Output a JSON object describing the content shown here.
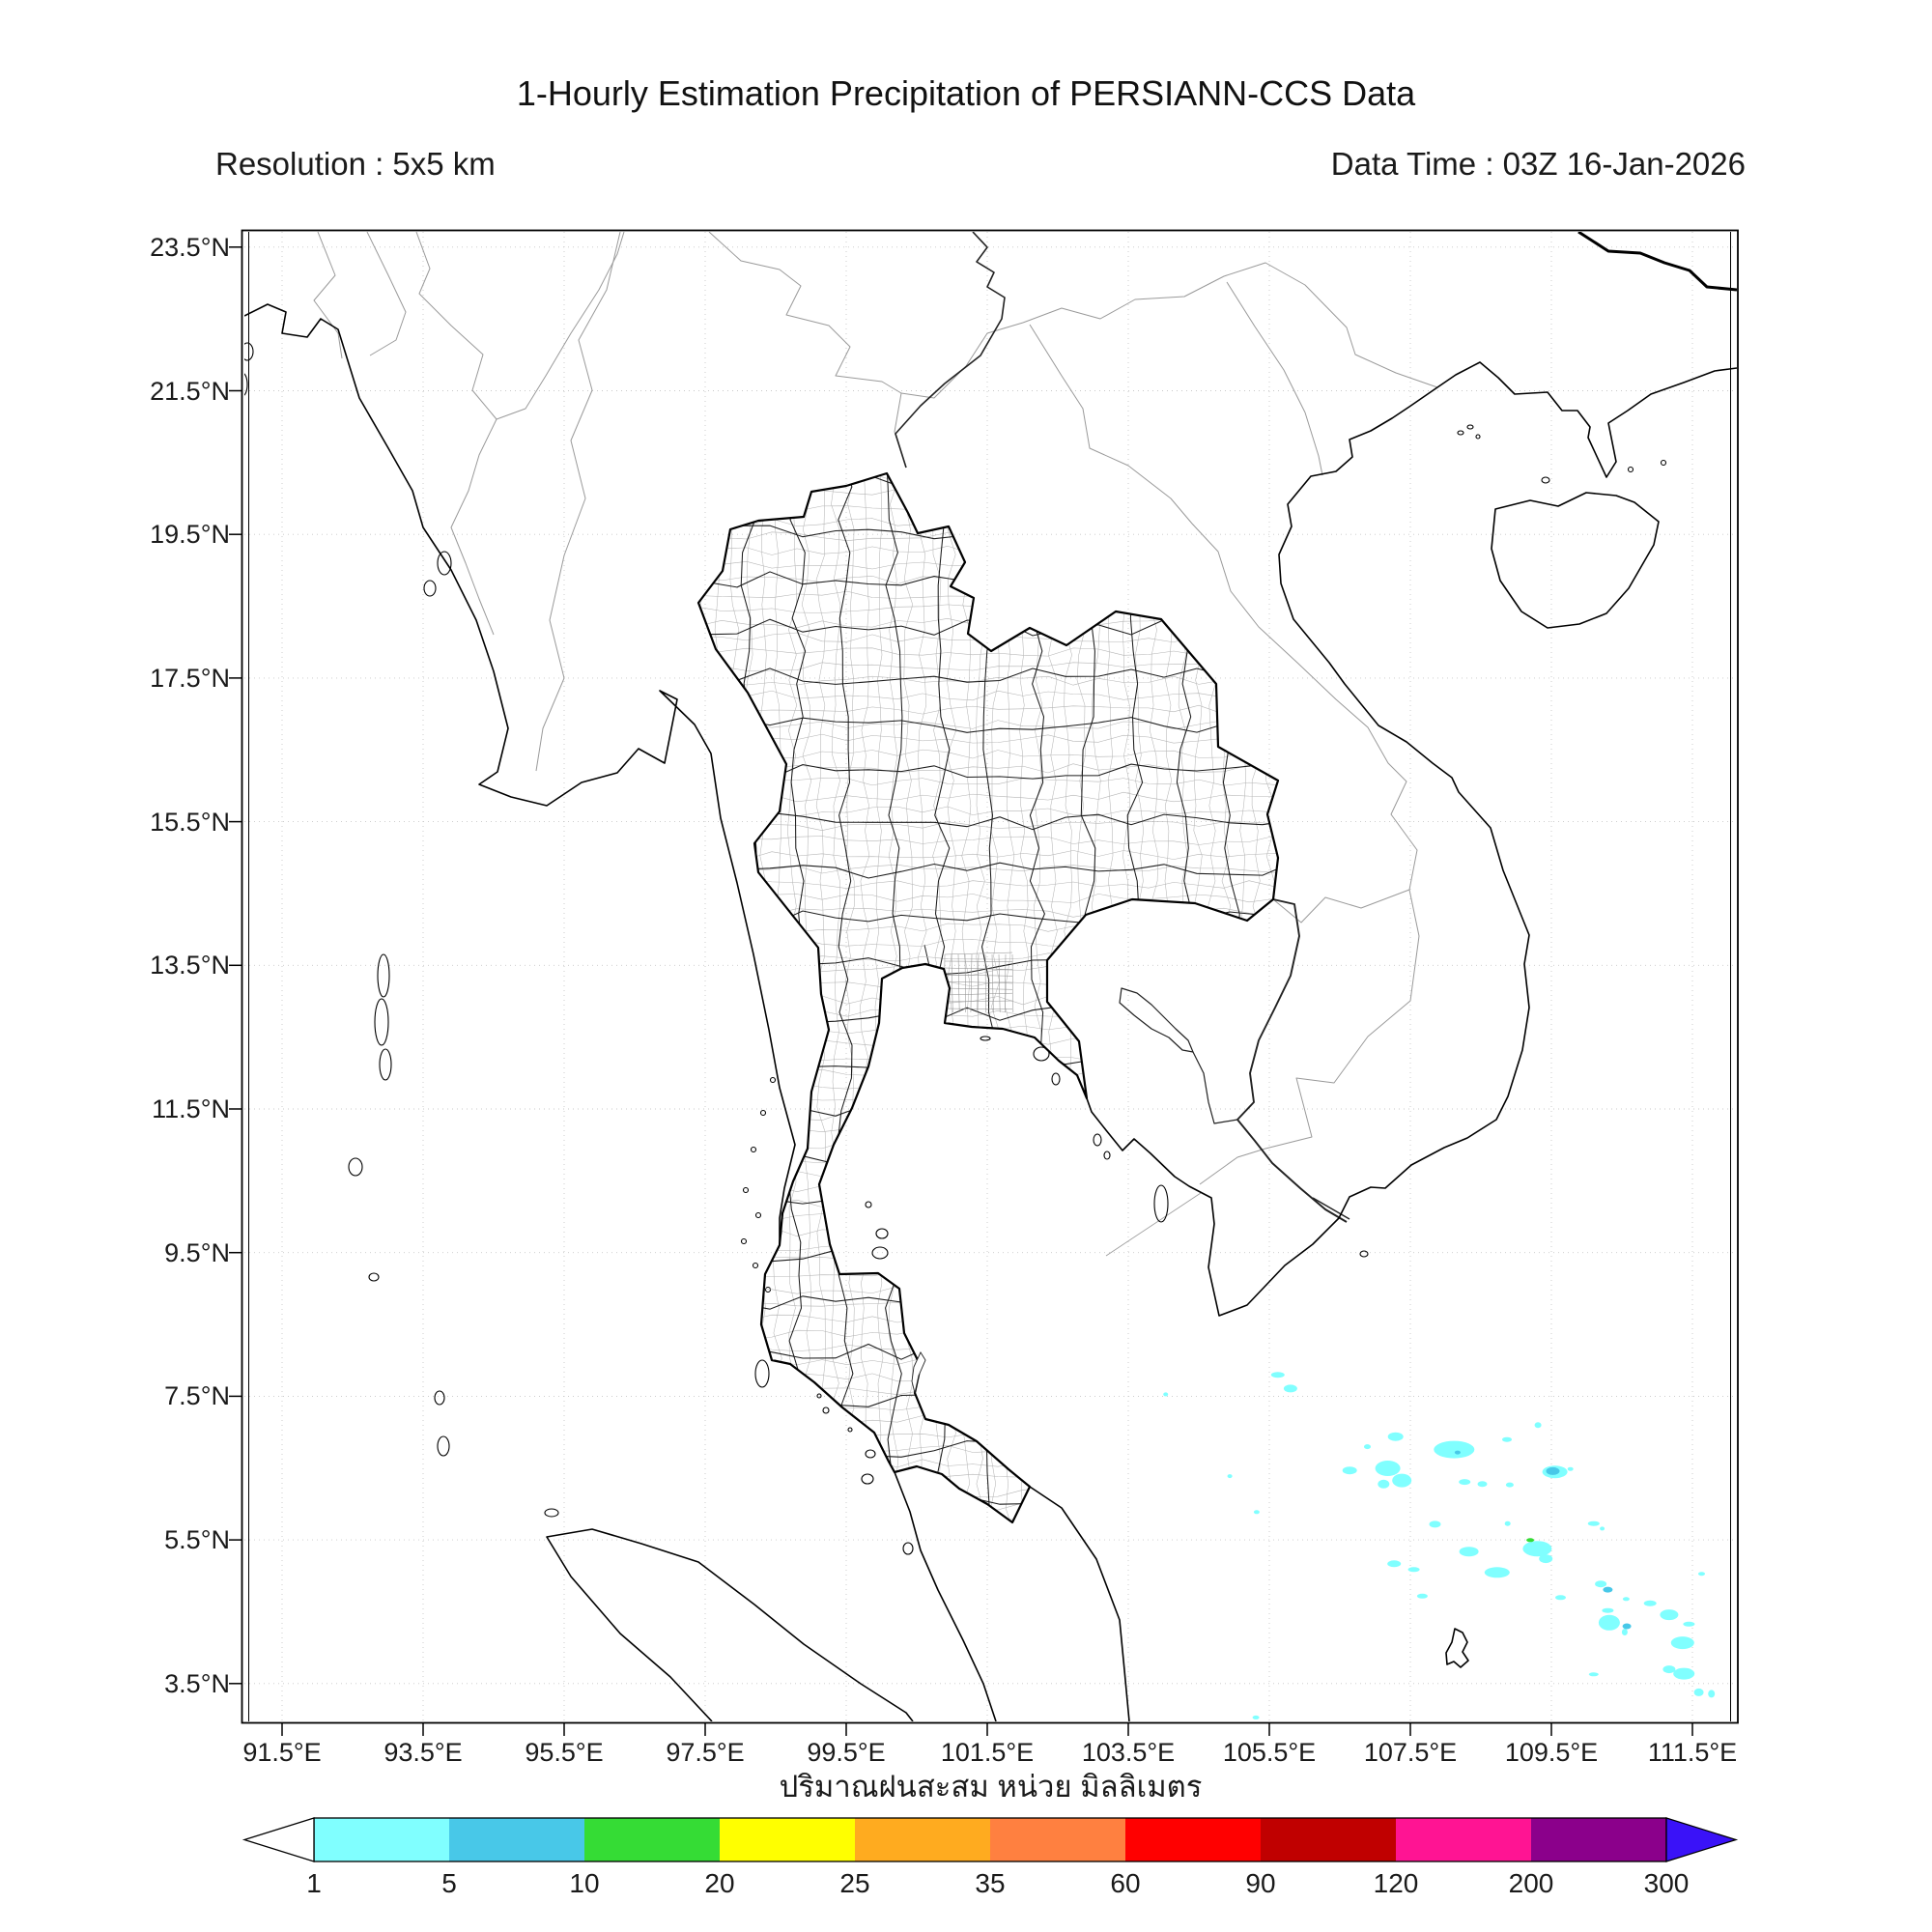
{
  "header": {
    "title": "1-Hourly Estimation Precipitation of PERSIANN-CCS Data",
    "resolution": "Resolution : 5x5 km",
    "data_time": "Data Time : 03Z 16-Jan-2026"
  },
  "footer": {
    "caption_thai": "ปริมาณฝนสะสม หน่วย มิลลิเมตร"
  },
  "axes": {
    "x_ticks": [
      "91.5°E",
      "93.5°E",
      "95.5°E",
      "97.5°E",
      "99.5°E",
      "101.5°E",
      "103.5°E",
      "105.5°E",
      "107.5°E",
      "109.5°E",
      "111.5°E"
    ],
    "y_ticks": [
      "23.5°N",
      "21.5°N",
      "19.5°N",
      "17.5°N",
      "15.5°N",
      "13.5°N",
      "11.5°N",
      "9.5°N",
      "7.5°N",
      "5.5°N",
      "3.5°N"
    ]
  },
  "colorbar": {
    "tick_labels": [
      "1",
      "5",
      "10",
      "20",
      "25",
      "35",
      "60",
      "90",
      "120",
      "200",
      "300"
    ],
    "segment_colors": [
      "#80FFFF",
      "#48C8E8",
      "#35DC35",
      "#FFFF00",
      "#FFAB1F",
      "#FF8040",
      "#FF0000",
      "#C00000",
      "#FF1493",
      "#8B008B"
    ],
    "underflow_color": "#FFFFFF",
    "overflow_color": "#3A12F8",
    "outline_color": "#000000"
  },
  "chart_data": {
    "type": "heatmap",
    "title": "1-Hourly Estimation Precipitation of PERSIANN-CCS Data",
    "resolution": "5x5 km",
    "data_time": "03Z 16-Jan-2026",
    "units": "mm",
    "x_ticks_lon_e": [
      91.5,
      93.5,
      95.5,
      97.5,
      99.5,
      101.5,
      103.5,
      105.5,
      107.5,
      109.5,
      111.5
    ],
    "y_ticks_lat_n": [
      23.5,
      21.5,
      19.5,
      17.5,
      15.5,
      13.5,
      11.5,
      9.5,
      7.5,
      5.5,
      3.5
    ],
    "colorbar_levels_mm": [
      1,
      5,
      10,
      20,
      25,
      35,
      60,
      90,
      120,
      200,
      300
    ],
    "cell_format": "[lon_e, lat_n, width_px, height_px, value_mm]",
    "precipitation_cells": [
      [
        105.62,
        7.8,
        14,
        6,
        2
      ],
      [
        105.8,
        7.61,
        14,
        8,
        2
      ],
      [
        104.03,
        7.53,
        5,
        4,
        2
      ],
      [
        107.29,
        6.94,
        16,
        9,
        2
      ],
      [
        106.89,
        6.8,
        7,
        5,
        2
      ],
      [
        107.18,
        6.5,
        26,
        16,
        2
      ],
      [
        107.38,
        6.33,
        20,
        14,
        2
      ],
      [
        107.12,
        6.28,
        12,
        9,
        2
      ],
      [
        106.64,
        6.47,
        15,
        8,
        2
      ],
      [
        108.12,
        6.76,
        42,
        18,
        2
      ],
      [
        108.17,
        6.72,
        6,
        4,
        7
      ],
      [
        108.27,
        6.31,
        12,
        6,
        2
      ],
      [
        108.52,
        6.28,
        10,
        6,
        2
      ],
      [
        108.91,
        6.27,
        8,
        5,
        2
      ],
      [
        109.31,
        7.1,
        7,
        6,
        2
      ],
      [
        108.87,
        6.9,
        10,
        5,
        2
      ],
      [
        109.55,
        6.45,
        26,
        13,
        2
      ],
      [
        109.52,
        6.46,
        14,
        8,
        7
      ],
      [
        109.77,
        6.49,
        6,
        4,
        2
      ],
      [
        104.94,
        6.39,
        5,
        4,
        2
      ],
      [
        105.32,
        5.89,
        6,
        4,
        2
      ],
      [
        107.85,
        5.72,
        12,
        7,
        2
      ],
      [
        108.88,
        5.73,
        6,
        5,
        2
      ],
      [
        110.1,
        5.73,
        12,
        5,
        2
      ],
      [
        110.22,
        5.66,
        5,
        4,
        2
      ],
      [
        109.3,
        5.38,
        30,
        16,
        2
      ],
      [
        109.42,
        5.24,
        14,
        9,
        2
      ],
      [
        109.2,
        5.5,
        8,
        4,
        15
      ],
      [
        108.33,
        5.34,
        20,
        10,
        2
      ],
      [
        107.27,
        5.17,
        14,
        7,
        2
      ],
      [
        107.55,
        5.09,
        12,
        5,
        2
      ],
      [
        108.73,
        5.05,
        26,
        11,
        2
      ],
      [
        107.67,
        4.72,
        11,
        5,
        2
      ],
      [
        109.63,
        4.7,
        11,
        5,
        2
      ],
      [
        110.2,
        4.89,
        12,
        7,
        2
      ],
      [
        110.3,
        4.81,
        10,
        6,
        7
      ],
      [
        110.32,
        4.35,
        22,
        16,
        2
      ],
      [
        110.57,
        4.3,
        9,
        6,
        7
      ],
      [
        110.54,
        4.22,
        6,
        7,
        2
      ],
      [
        110.56,
        4.68,
        7,
        4,
        2
      ],
      [
        110.9,
        4.62,
        13,
        6,
        2
      ],
      [
        111.17,
        4.46,
        19,
        11,
        2
      ],
      [
        110.3,
        4.52,
        12,
        5,
        2
      ],
      [
        111.63,
        5.03,
        7,
        4,
        2
      ],
      [
        111.45,
        4.33,
        12,
        5,
        2
      ],
      [
        111.36,
        4.07,
        24,
        13,
        2
      ],
      [
        111.17,
        3.7,
        13,
        8,
        2
      ],
      [
        111.38,
        3.64,
        22,
        12,
        2
      ],
      [
        110.1,
        3.63,
        10,
        4,
        2
      ],
      [
        111.59,
        3.38,
        10,
        8,
        2
      ],
      [
        111.77,
        3.36,
        7,
        8,
        2
      ],
      [
        105.31,
        3.03,
        7,
        4,
        2
      ]
    ]
  }
}
